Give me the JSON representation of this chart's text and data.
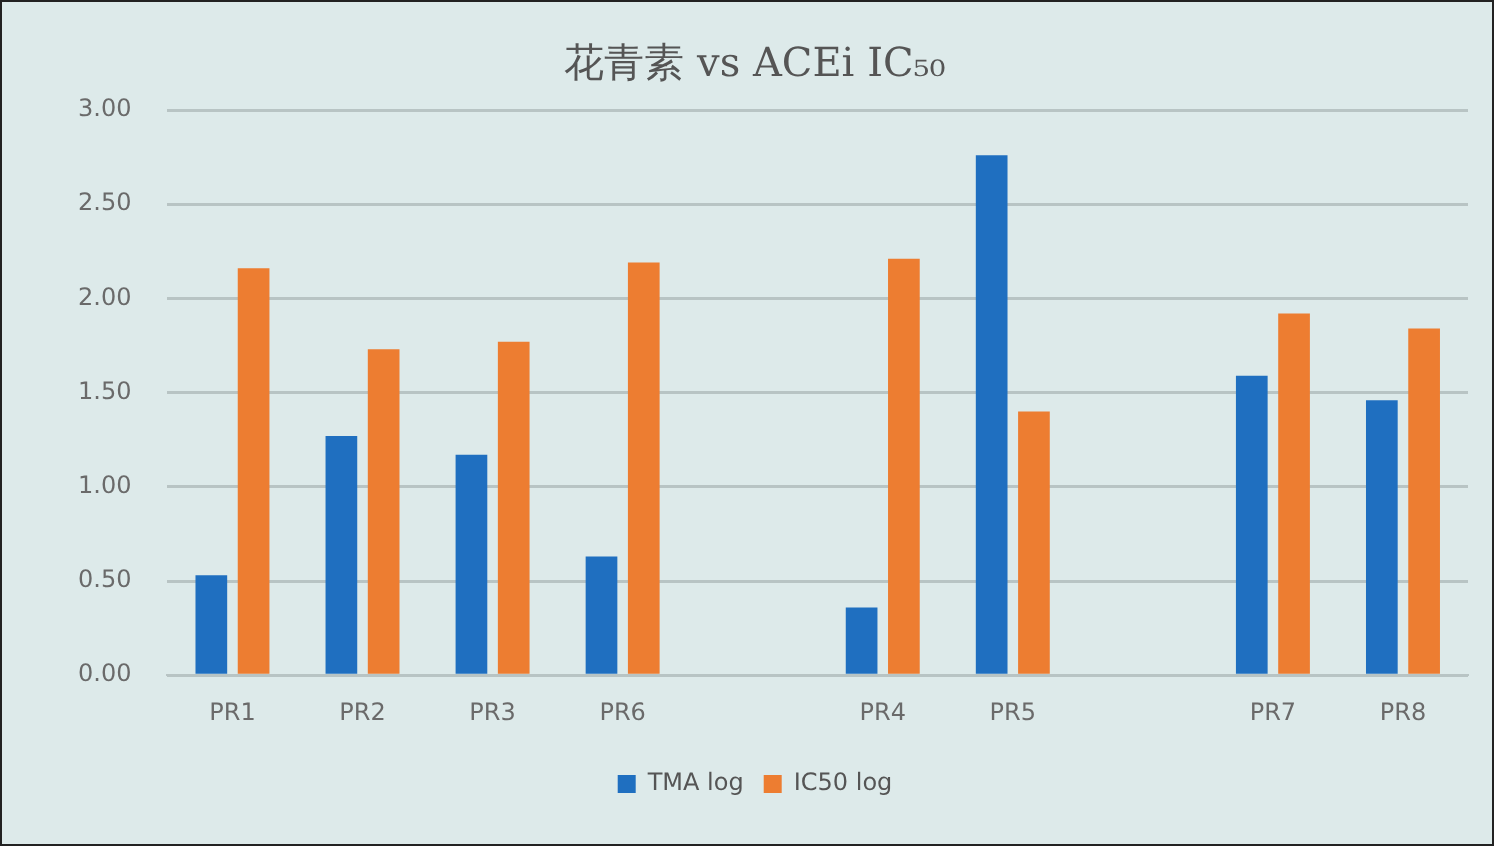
{
  "chart_data": {
    "type": "bar",
    "title": "花青素 vs ACEi IC₅₀",
    "categories": [
      "PR1",
      "PR2",
      "PR3",
      "PR6",
      null,
      "PR4",
      "PR5",
      null,
      "PR7",
      "PR8"
    ],
    "series": [
      {
        "name": "TMA log",
        "color": "#1f6fc0",
        "values": [
          0.53,
          1.27,
          1.17,
          0.63,
          null,
          0.36,
          2.76,
          null,
          1.59,
          1.46
        ]
      },
      {
        "name": "IC50 log",
        "color": "#ed7d31",
        "values": [
          2.16,
          1.73,
          1.77,
          2.19,
          null,
          2.21,
          1.4,
          null,
          1.92,
          1.84
        ]
      }
    ],
    "ylim": [
      0,
      3
    ],
    "yticks": [
      {
        "value": 0,
        "label": "0.00"
      },
      {
        "value": 0.5,
        "label": "0.50"
      },
      {
        "value": 1,
        "label": "1.00"
      },
      {
        "value": 1.5,
        "label": "1.50"
      },
      {
        "value": 2,
        "label": "2.00"
      },
      {
        "value": 2.5,
        "label": "2.50"
      },
      {
        "value": 3,
        "label": "3.00"
      }
    ],
    "grid": "y",
    "legend": "bottom"
  }
}
